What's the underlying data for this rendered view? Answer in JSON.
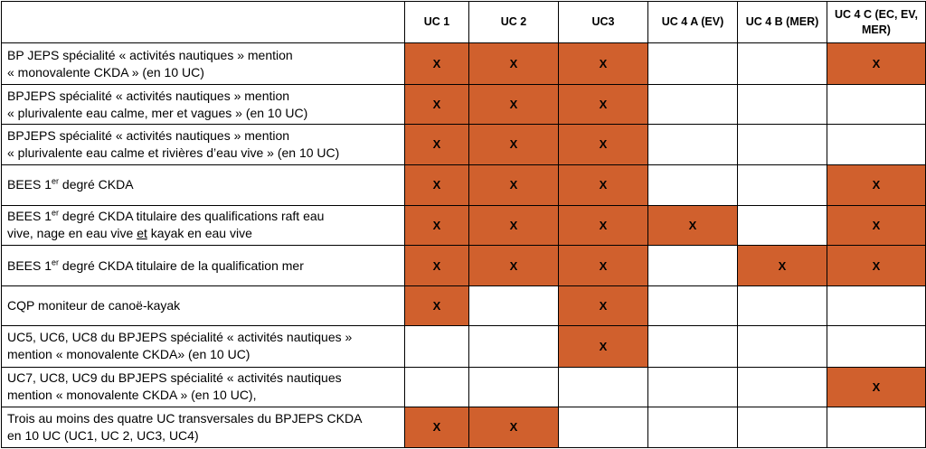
{
  "headers": [
    "",
    "UC 1",
    "UC 2",
    "UC3",
    "UC 4 A (EV)",
    "UC 4 B (MER)",
    "UC 4 C (EC, EV, MER)"
  ],
  "mark": "X",
  "accent_color": "#d0602d",
  "rows": [
    {
      "lines": [
        "BP JEPS spécialité « activités nautiques »  mention",
        "« monovalente CKDA » (en 10 UC)"
      ],
      "marks": [
        true,
        true,
        true,
        false,
        false,
        true
      ]
    },
    {
      "lines": [
        "BPJEPS spécialité «  activités nautiques » mention",
        "« plurivalente eau calme, mer et vagues » (en 10 UC)"
      ],
      "marks": [
        true,
        true,
        true,
        false,
        false,
        false
      ]
    },
    {
      "lines": [
        "BPJEPS spécialité «  activités nautiques » mention",
        "« plurivalente eau calme et rivières d’eau vive » (en 10 UC)"
      ],
      "marks": [
        true,
        true,
        true,
        false,
        false,
        false
      ]
    },
    {
      "pre": "BEES 1",
      "sup": "er",
      "post": " degré CKDA",
      "marks": [
        true,
        true,
        true,
        false,
        false,
        true
      ]
    },
    {
      "pre": "BEES 1",
      "sup": "er",
      "post": "  degré CKDA titulaire des qualifications raft eau",
      "line2_pre": "vive, nage en eau vive ",
      "line2_u": "et",
      "line2_post": " kayak en eau vive",
      "marks": [
        true,
        true,
        true,
        true,
        false,
        true
      ]
    },
    {
      "pre": "BEES 1",
      "sup": "er",
      "post": " degré CKDA titulaire de la qualification mer",
      "marks": [
        true,
        true,
        true,
        false,
        true,
        true
      ]
    },
    {
      "lines": [
        "CQP moniteur de canoë-kayak"
      ],
      "marks": [
        true,
        false,
        true,
        false,
        false,
        false
      ]
    },
    {
      "lines": [
        "UC5, UC6, UC8 du BPJEPS spécialité « activités nautiques »",
        "mention « monovalente CKDA» (en 10 UC)"
      ],
      "marks": [
        false,
        false,
        true,
        false,
        false,
        false
      ]
    },
    {
      "lines": [
        "UC7, UC8, UC9 du BPJEPS spécialité « activités nautiques",
        "mention « monovalente CKDA » (en 10 UC),"
      ],
      "marks": [
        false,
        false,
        false,
        false,
        false,
        true
      ]
    },
    {
      "lines": [
        "Trois au moins des quatre UC transversales du BPJEPS CKDA",
        "en 10 UC (UC1, UC 2, UC3, UC4)"
      ],
      "marks": [
        true,
        true,
        false,
        false,
        false,
        false
      ]
    }
  ]
}
